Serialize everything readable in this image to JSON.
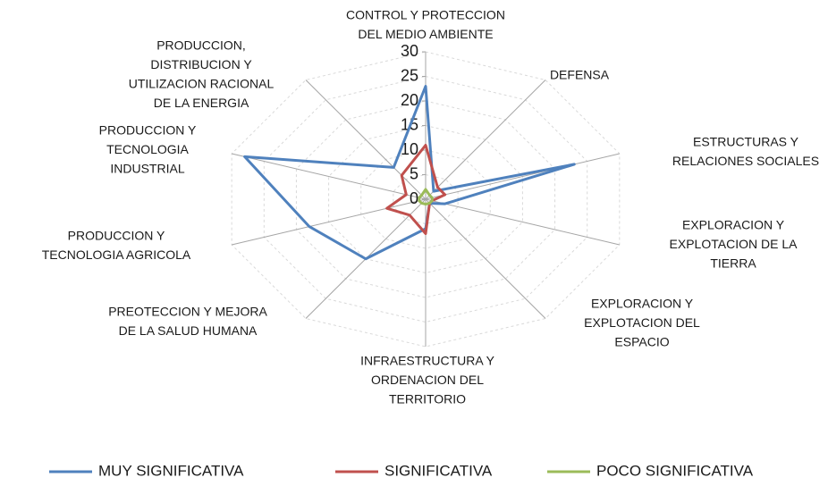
{
  "chart_data": {
    "type": "radar",
    "categories": [
      [
        "CONTROL Y PROTECCION",
        "DEL MEDIO AMBIENTE"
      ],
      [
        "DEFENSA"
      ],
      [
        "ESTRUCTURAS Y",
        "RELACIONES SOCIALES"
      ],
      [
        "EXPLORACION Y",
        "EXPLOTACION DE LA",
        "TIERRA"
      ],
      [
        "EXPLORACION Y",
        "EXPLOTACION DEL",
        "ESPACIO"
      ],
      [
        "INFRAESTRUCTURA Y",
        "ORDENACION DEL",
        "TERRITORIO"
      ],
      [
        "PREOTECCION Y MEJORA",
        "DE LA SALUD HUMANA"
      ],
      [
        "PRODUCCION Y",
        "TECNOLOGIA AGRICOLA"
      ],
      [
        "PRODUCCION Y",
        "TECNOLOGIA",
        "INDUSTRIAL"
      ],
      [
        "PRODUCCION,",
        "DISTRIBUCION Y",
        "UTILIZACION RACIONAL",
        "DE LA ENERGIA"
      ]
    ],
    "series": [
      {
        "name": "MUY SIGNIFICATIVA",
        "color": "#4f81bd",
        "values": [
          23,
          2,
          23,
          3,
          1,
          6,
          15,
          18,
          28,
          8
        ]
      },
      {
        "name": "SIGNIFICATIVA",
        "color": "#c0504d",
        "values": [
          11,
          3,
          3,
          1,
          1,
          7,
          4,
          6,
          3,
          6
        ]
      },
      {
        "name": "POCO SIGNIFICATIVA",
        "color": "#9bbb59",
        "values": [
          2,
          1,
          1,
          1,
          1,
          1,
          1,
          1,
          1,
          1
        ]
      }
    ],
    "ylim": [
      0,
      30
    ],
    "yticks": [
      0,
      5,
      10,
      15,
      20,
      25,
      30
    ],
    "grid": true,
    "legend": "bottom"
  }
}
